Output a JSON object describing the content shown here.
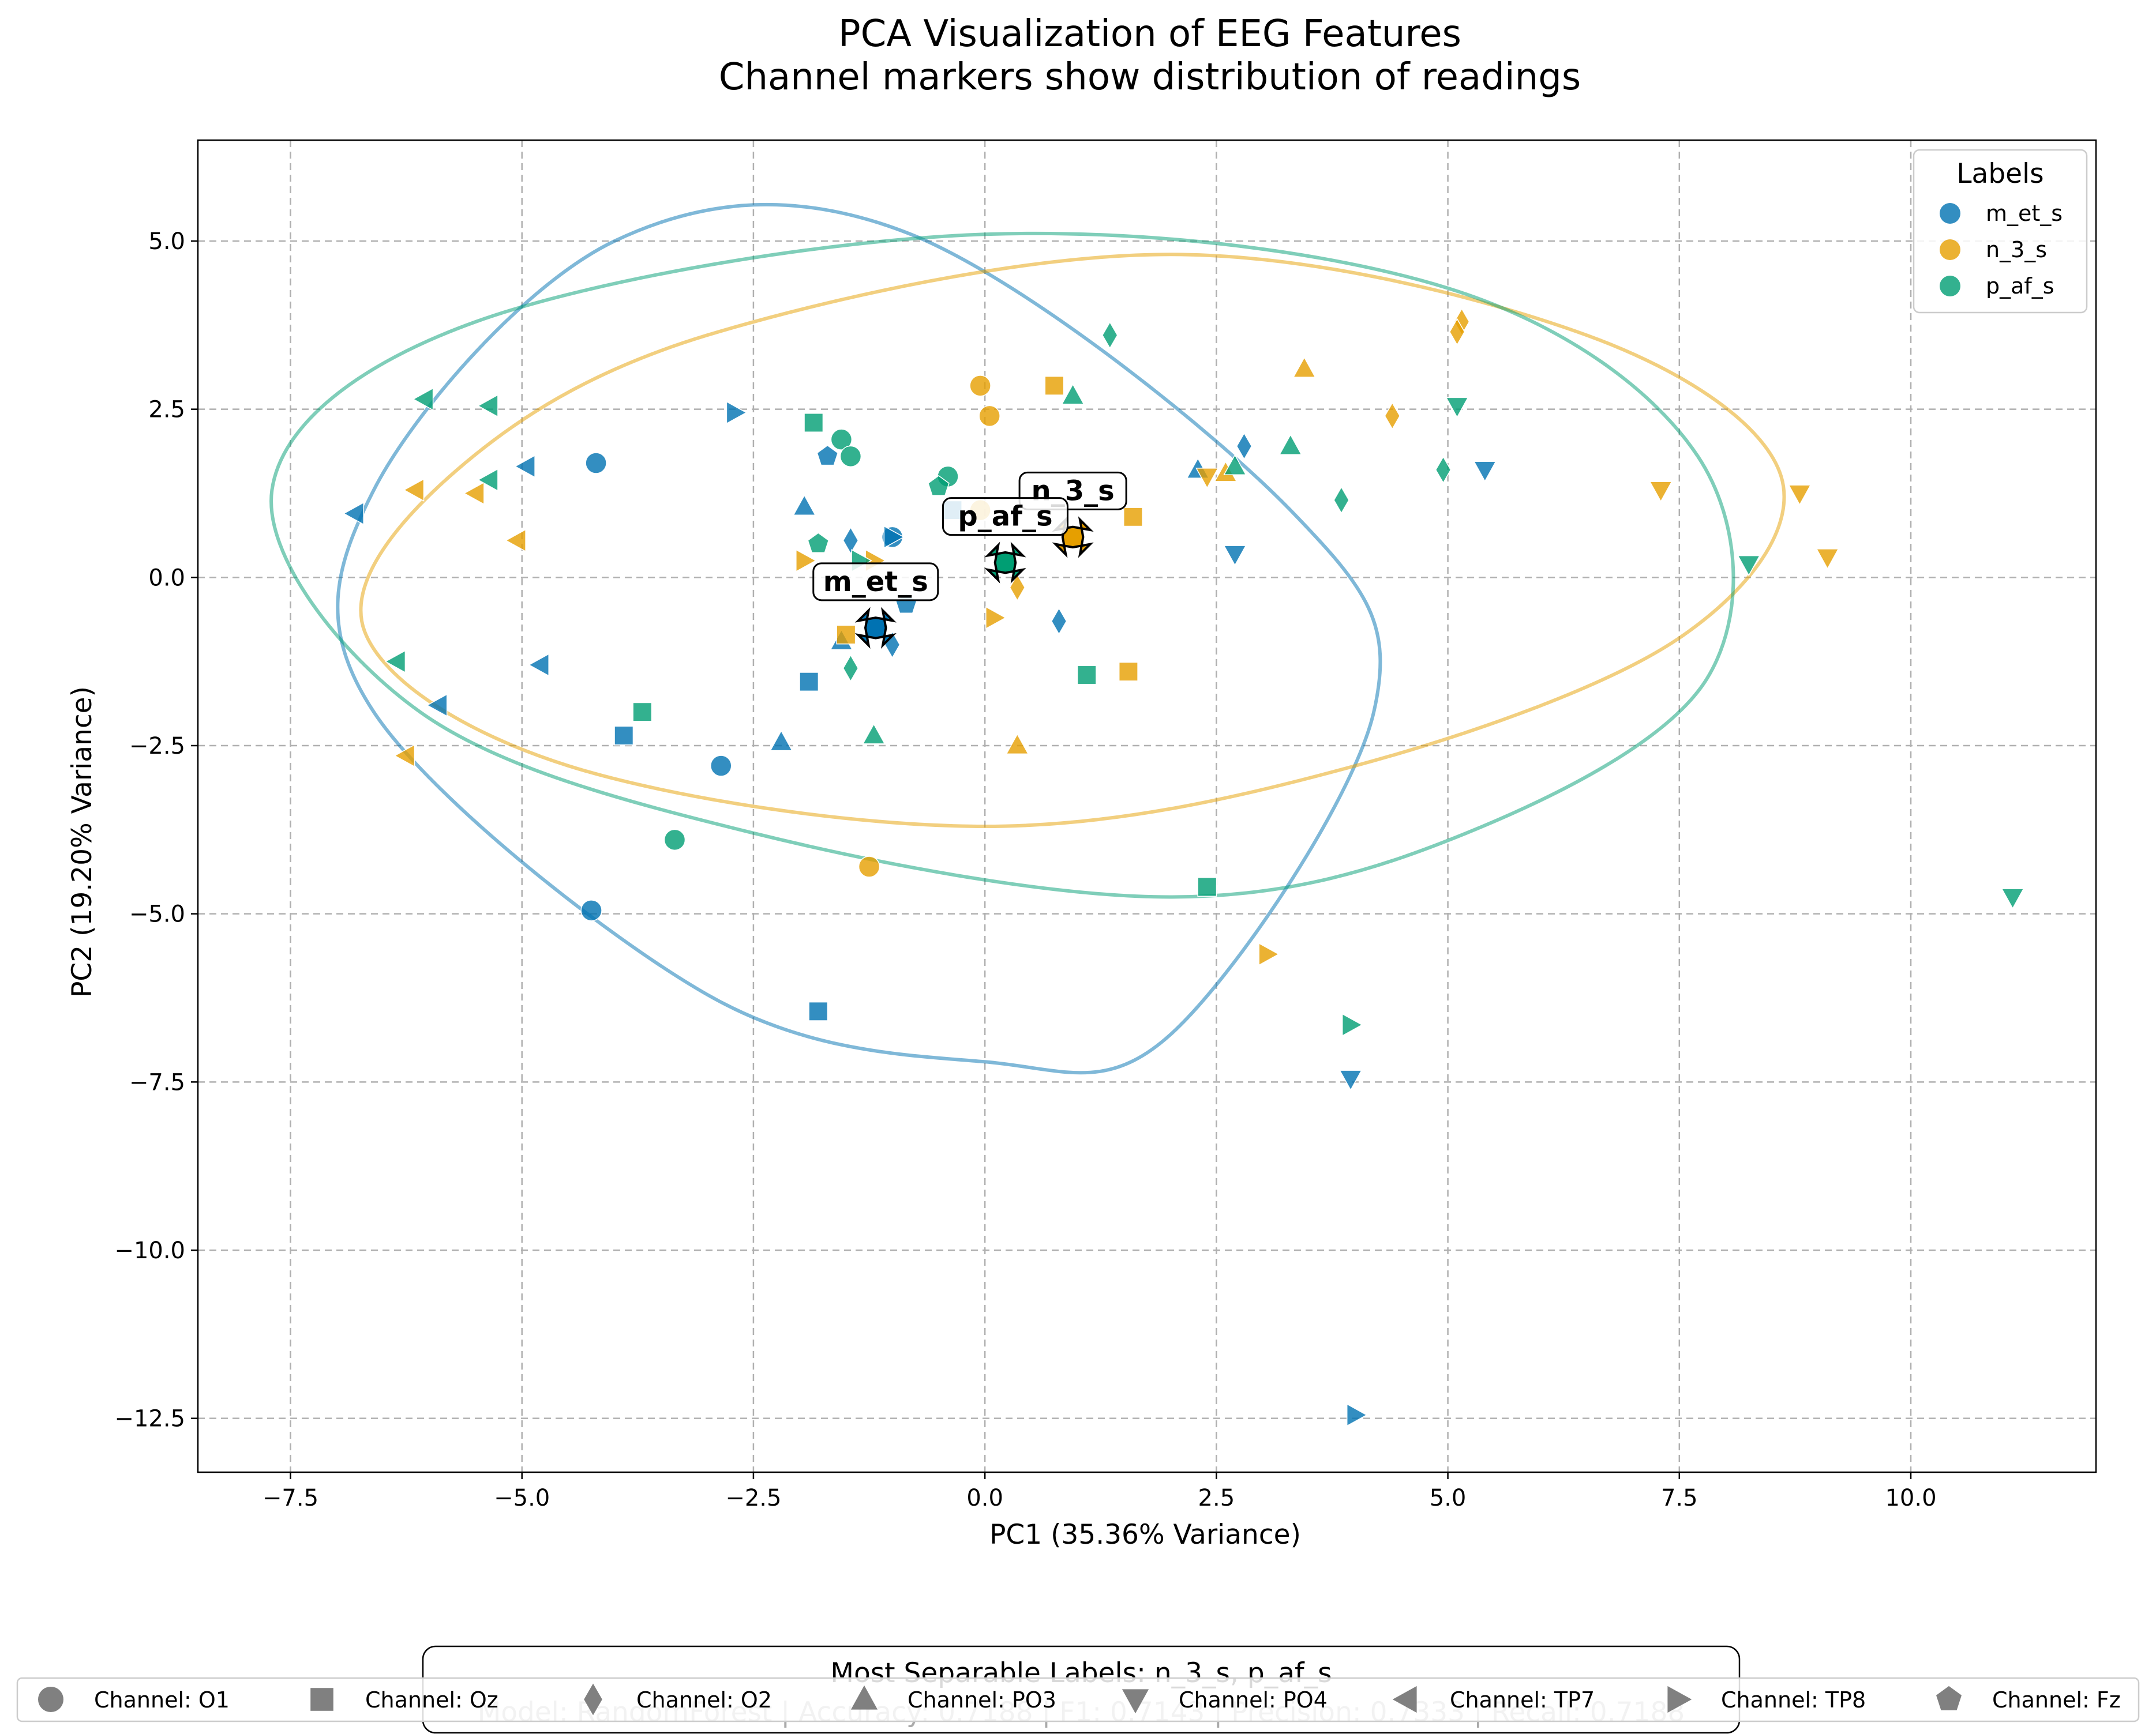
{
  "chart_data": {
    "type": "scatter",
    "title": "PCA Visualization of EEG Features",
    "subtitle": "Channel markers show distribution of readings",
    "xlabel": "PC1 (35.36% Variance)",
    "ylabel": "PC2 (19.20% Variance)",
    "xlim": [
      -8.5,
      12.0
    ],
    "ylim": [
      -13.3,
      6.5
    ],
    "xticks": [
      -7.5,
      -5.0,
      -2.5,
      0.0,
      2.5,
      5.0,
      7.5,
      10.0
    ],
    "xtick_labels": [
      "−7.5",
      "−5.0",
      "−2.5",
      "0.0",
      "2.5",
      "5.0",
      "7.5",
      "10.0"
    ],
    "yticks": [
      5.0,
      2.5,
      0.0,
      -2.5,
      -5.0,
      -7.5,
      -10.0,
      -12.5
    ],
    "ytick_labels": [
      "5.0",
      "2.5",
      "0.0",
      "−2.5",
      "−5.0",
      "−7.5",
      "−10.0",
      "−12.5"
    ],
    "grid": true,
    "legend_title": "Labels",
    "legend_position": "top-right",
    "series": [
      {
        "name": "m_et_s",
        "color": "#0072B2",
        "points": [
          [
            -4.2,
            1.7,
            "O1"
          ],
          [
            -2.85,
            -2.8,
            "O1"
          ],
          [
            -4.25,
            -4.95,
            "O1"
          ],
          [
            -1.0,
            0.6,
            "O1"
          ],
          [
            -1.9,
            -1.55,
            "Oz"
          ],
          [
            -3.9,
            -2.35,
            "Oz"
          ],
          [
            -1.8,
            -6.45,
            "Oz"
          ],
          [
            -0.35,
            1.0,
            "Oz"
          ],
          [
            -1.45,
            0.55,
            "O2"
          ],
          [
            2.8,
            1.95,
            "O2"
          ],
          [
            0.8,
            -0.65,
            "O2"
          ],
          [
            -1.0,
            -1.0,
            "O2"
          ],
          [
            -1.95,
            1.05,
            "PO3"
          ],
          [
            -2.2,
            -2.45,
            "PO3"
          ],
          [
            2.3,
            1.6,
            "PO3"
          ],
          [
            -1.55,
            -0.95,
            "PO3"
          ],
          [
            2.7,
            0.35,
            "PO4"
          ],
          [
            5.4,
            1.6,
            "PO4"
          ],
          [
            3.95,
            -7.45,
            "PO4"
          ],
          [
            -6.8,
            0.95,
            "TP7"
          ],
          [
            -4.95,
            1.65,
            "TP7"
          ],
          [
            -4.8,
            -1.3,
            "TP7"
          ],
          [
            -5.9,
            -1.9,
            "TP7"
          ],
          [
            -2.7,
            2.45,
            "TP8"
          ],
          [
            -1.0,
            0.6,
            "TP8"
          ],
          [
            4.0,
            -12.45,
            "TP8"
          ],
          [
            -1.7,
            1.8,
            "Fz"
          ],
          [
            -0.85,
            -0.4,
            "Fz"
          ]
        ]
      },
      {
        "name": "n_3_s",
        "color": "#E69F00",
        "points": [
          [
            -0.05,
            2.85,
            "O1"
          ],
          [
            0.05,
            2.4,
            "O1"
          ],
          [
            -1.25,
            -4.3,
            "O1"
          ],
          [
            -0.05,
            1.0,
            "O1"
          ],
          [
            0.75,
            2.85,
            "Oz"
          ],
          [
            1.6,
            0.9,
            "Oz"
          ],
          [
            1.55,
            -1.4,
            "Oz"
          ],
          [
            -1.5,
            -0.85,
            "Oz"
          ],
          [
            4.4,
            2.4,
            "O2"
          ],
          [
            5.15,
            3.8,
            "O2"
          ],
          [
            5.1,
            3.65,
            "O2"
          ],
          [
            0.35,
            -0.15,
            "O2"
          ],
          [
            3.45,
            3.1,
            "PO3"
          ],
          [
            0.35,
            -2.5,
            "PO3"
          ],
          [
            2.6,
            1.55,
            "PO3"
          ],
          [
            7.3,
            1.3,
            "PO4"
          ],
          [
            8.8,
            1.25,
            "PO4"
          ],
          [
            9.1,
            0.3,
            "PO4"
          ],
          [
            2.4,
            1.5,
            "PO4"
          ],
          [
            -6.15,
            1.3,
            "TP7"
          ],
          [
            -5.5,
            1.25,
            "TP7"
          ],
          [
            -5.05,
            0.55,
            "TP7"
          ],
          [
            -6.25,
            -2.65,
            "TP7"
          ],
          [
            -1.95,
            0.25,
            "TP8"
          ],
          [
            0.1,
            -0.6,
            "TP8"
          ],
          [
            3.05,
            -5.6,
            "TP8"
          ],
          [
            -1.2,
            0.25,
            "TP8"
          ]
        ]
      },
      {
        "name": "p_af_s",
        "color": "#009E73",
        "points": [
          [
            -1.55,
            2.05,
            "O1"
          ],
          [
            -1.45,
            1.8,
            "O1"
          ],
          [
            -0.4,
            1.5,
            "O1"
          ],
          [
            -3.35,
            -3.9,
            "O1"
          ],
          [
            -1.85,
            2.3,
            "Oz"
          ],
          [
            -3.7,
            -2.0,
            "Oz"
          ],
          [
            1.1,
            -1.45,
            "Oz"
          ],
          [
            2.4,
            -4.6,
            "Oz"
          ],
          [
            1.35,
            3.6,
            "O2"
          ],
          [
            3.85,
            1.15,
            "O2"
          ],
          [
            4.95,
            1.6,
            "O2"
          ],
          [
            -1.45,
            -1.35,
            "O2"
          ],
          [
            0.95,
            2.7,
            "PO3"
          ],
          [
            3.3,
            1.95,
            "PO3"
          ],
          [
            2.7,
            1.65,
            "PO3"
          ],
          [
            -1.2,
            -2.35,
            "PO3"
          ],
          [
            5.1,
            2.55,
            "PO4"
          ],
          [
            8.25,
            0.2,
            "PO4"
          ],
          [
            11.1,
            -4.75,
            "PO4"
          ],
          [
            -6.05,
            2.65,
            "TP7"
          ],
          [
            -5.35,
            2.55,
            "TP7"
          ],
          [
            -5.35,
            1.45,
            "TP7"
          ],
          [
            -6.35,
            -1.25,
            "TP7"
          ],
          [
            3.95,
            -6.65,
            "TP8"
          ],
          [
            -1.35,
            0.25,
            "TP8"
          ],
          [
            -1.8,
            0.5,
            "Fz"
          ],
          [
            -0.5,
            1.35,
            "Fz"
          ]
        ]
      }
    ],
    "ellipses": [
      {
        "name": "m_et_s",
        "color": "#0072B2",
        "points": [
          [
            -4.0,
            5.0
          ],
          [
            -0.8,
            5.1
          ],
          [
            3.3,
            1.0
          ],
          [
            4.2,
            -2.0
          ],
          [
            2.0,
            -6.8
          ],
          [
            0.0,
            -7.2
          ],
          [
            -3.0,
            -6.2
          ],
          [
            -6.6,
            -2.0
          ],
          [
            -6.6,
            1.3
          ]
        ]
      },
      {
        "name": "n_3_s",
        "color": "#E69F00",
        "points": [
          [
            -3.0,
            3.6
          ],
          [
            2.0,
            4.8
          ],
          [
            6.5,
            3.6
          ],
          [
            8.6,
            1.5
          ],
          [
            7.5,
            -0.9
          ],
          [
            4.0,
            -2.8
          ],
          [
            0.0,
            -3.7
          ],
          [
            -4.5,
            -2.8
          ],
          [
            -6.7,
            -0.8
          ],
          [
            -5.7,
            1.6
          ]
        ]
      },
      {
        "name": "p_af_s",
        "color": "#009E73",
        "points": [
          [
            -5.5,
            3.8
          ],
          [
            0.0,
            5.1
          ],
          [
            5.0,
            4.3
          ],
          [
            7.7,
            1.8
          ],
          [
            7.8,
            -1.5
          ],
          [
            5.2,
            -3.8
          ],
          [
            2.0,
            -4.75
          ],
          [
            -2.5,
            -3.8
          ],
          [
            -6.1,
            -2.0
          ],
          [
            -7.7,
            1.3
          ]
        ]
      }
    ],
    "centroids": [
      {
        "name": "m_et_s",
        "x": -1.18,
        "y": -0.75,
        "color": "#0072B2"
      },
      {
        "name": "n_3_s",
        "x": 0.95,
        "y": 0.6,
        "color": "#E69F00"
      },
      {
        "name": "p_af_s",
        "x": 0.22,
        "y": 0.22,
        "color": "#009E73"
      }
    ],
    "channel_legend": [
      {
        "label": "Channel: O1",
        "marker": "circle"
      },
      {
        "label": "Channel: Oz",
        "marker": "square"
      },
      {
        "label": "Channel: O2",
        "marker": "diamond"
      },
      {
        "label": "Channel: PO3",
        "marker": "triangle-up"
      },
      {
        "label": "Channel: PO4",
        "marker": "triangle-down"
      },
      {
        "label": "Channel: TP7",
        "marker": "triangle-left"
      },
      {
        "label": "Channel: TP8",
        "marker": "triangle-right"
      },
      {
        "label": "Channel: Fz",
        "marker": "pentagon"
      }
    ],
    "summary": {
      "separable": "Most Separable Labels: n_3_s, p_af_s",
      "metrics": "Model: RandomForest | Accuracy: 0.7188 | F1: 0.7143 | Precision: 0.7333 | Recall: 0.7188"
    }
  }
}
